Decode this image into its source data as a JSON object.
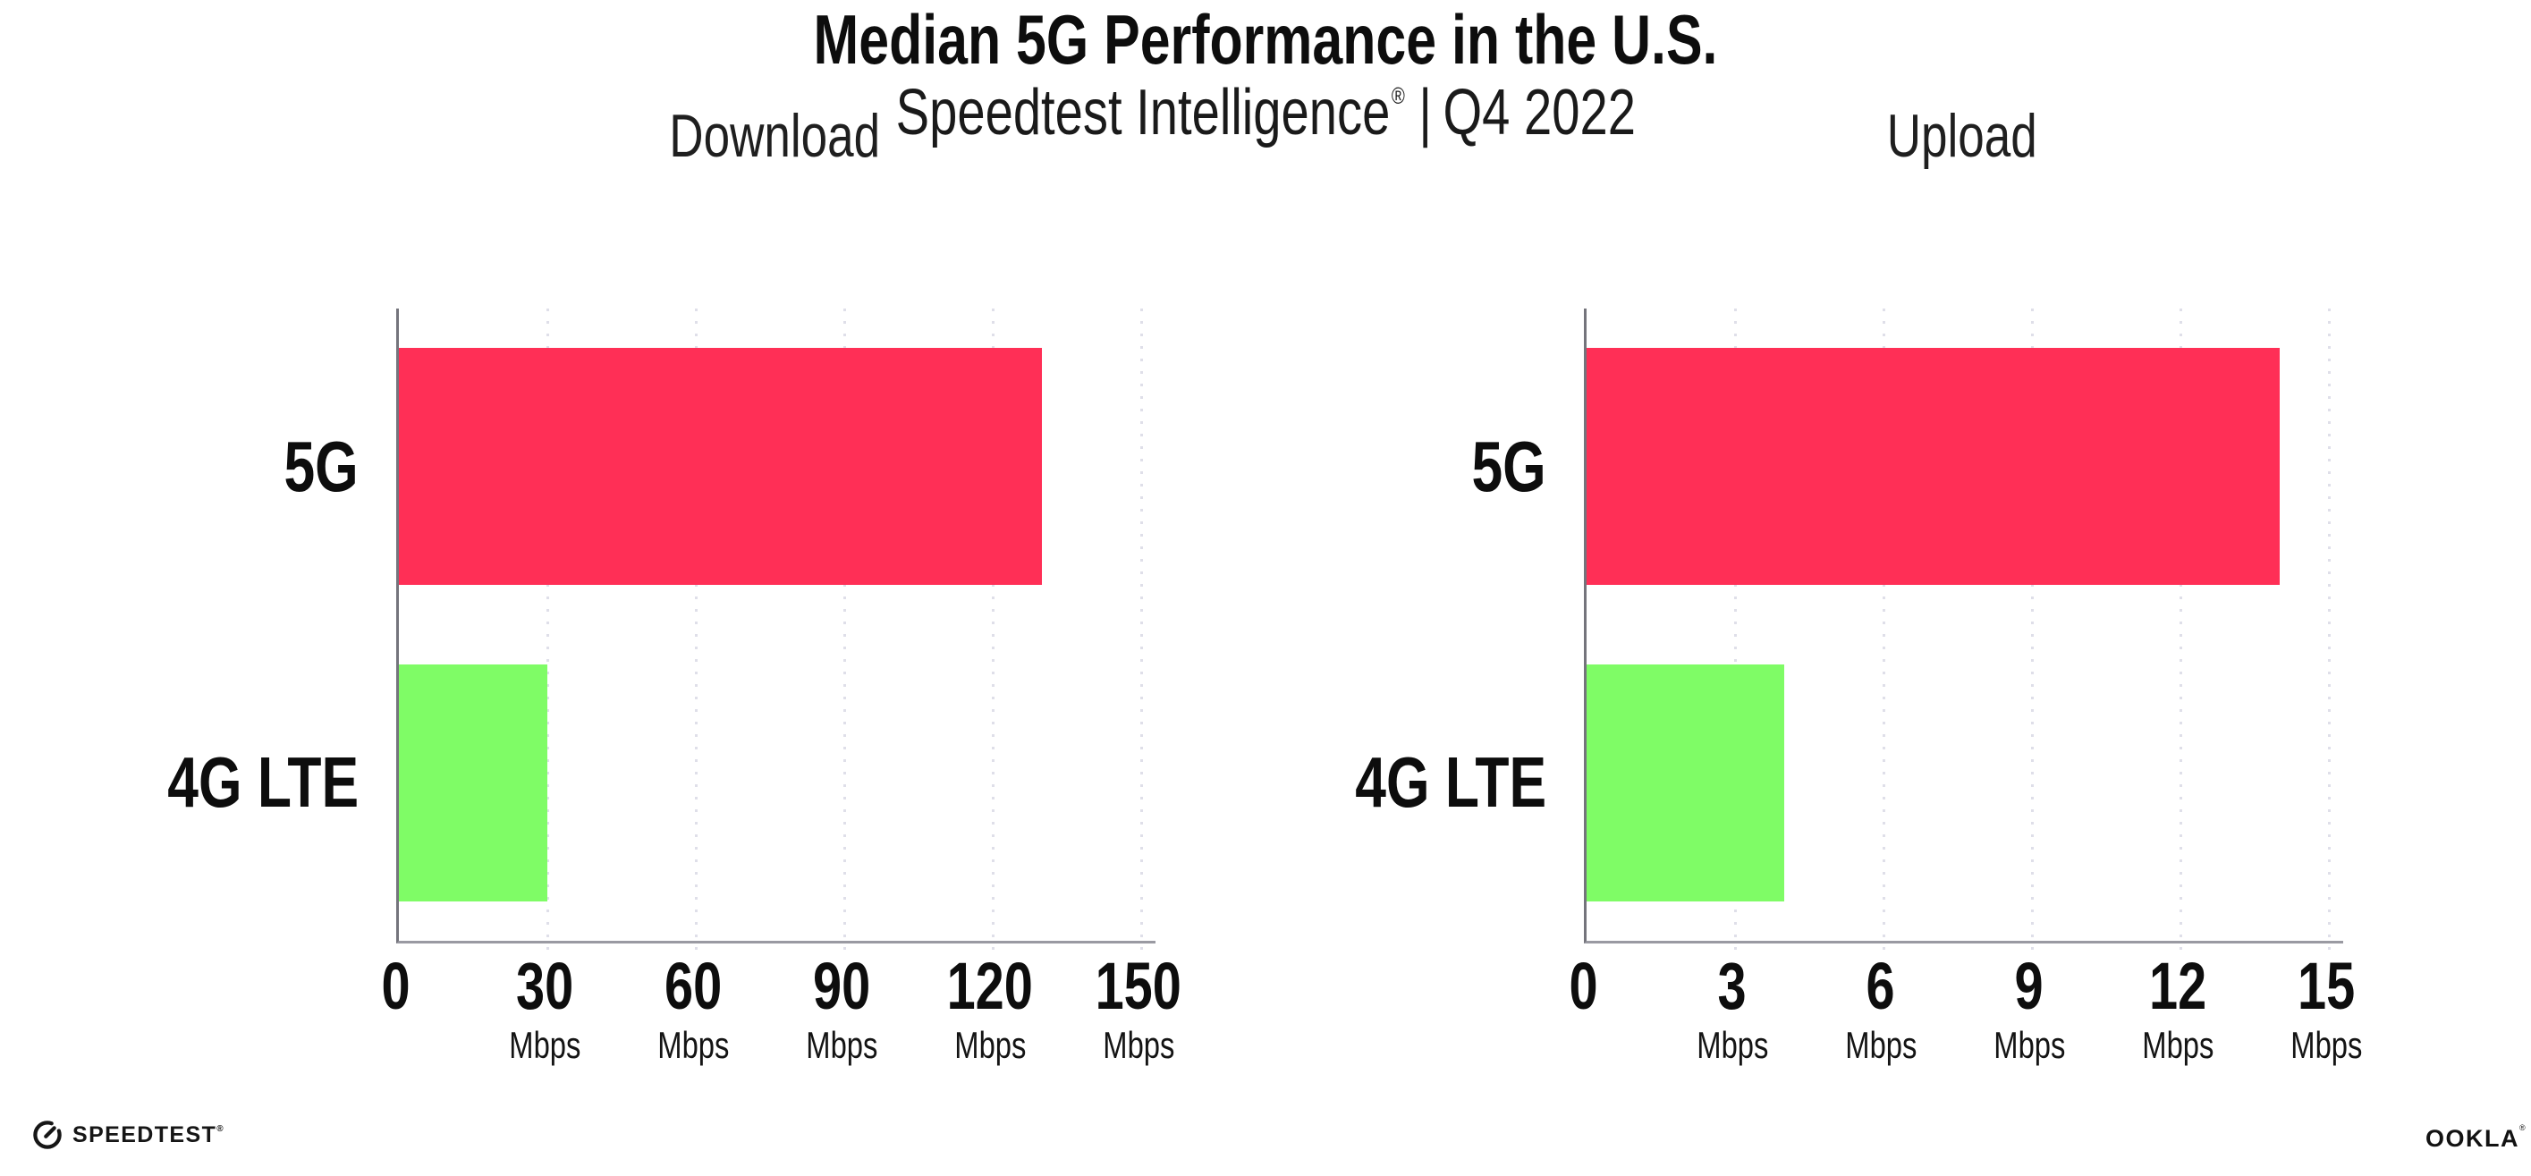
{
  "header": {
    "title": "Median 5G Performance in the U.S.",
    "subtitle_brand": "Speedtest Intelligence",
    "subtitle_reg_mark": "®",
    "subtitle_separator": "|",
    "subtitle_period": "Q4 2022"
  },
  "chart_data": [
    {
      "type": "bar",
      "orientation": "horizontal",
      "title": "Download",
      "categories": [
        "5G",
        "4G LTE"
      ],
      "values": [
        130,
        30
      ],
      "unit": "Mbps",
      "xlim": [
        0,
        150
      ],
      "xticks": [
        0,
        30,
        60,
        90,
        120,
        150
      ],
      "tick_unit_label": "Mbps",
      "bar_colors": [
        "#ff2f56",
        "#7ffc66"
      ],
      "grid": "dotted-vertical",
      "legend": "none"
    },
    {
      "type": "bar",
      "orientation": "horizontal",
      "title": "Upload",
      "categories": [
        "5G",
        "4G LTE"
      ],
      "values": [
        14,
        4
      ],
      "unit": "Mbps",
      "xlim": [
        0,
        15
      ],
      "xticks": [
        0,
        3,
        6,
        9,
        12,
        15
      ],
      "tick_unit_label": "Mbps",
      "bar_colors": [
        "#ff2f56",
        "#7ffc66"
      ],
      "grid": "dotted-vertical",
      "legend": "none"
    }
  ],
  "footer": {
    "speedtest_logo_text": "SPEEDTEST",
    "speedtest_reg_mark": "®",
    "ookla_logo_text": "OOKLA",
    "ookla_reg_mark": "®"
  },
  "colors": {
    "bar_5g": "#ff2f56",
    "bar_4g_lte": "#7ffc66",
    "gridline": "#dfdfe9",
    "axis_left_spine": "#74747c",
    "axis_bottom_spine": "#9a9aa2",
    "text": "#141414",
    "background": "#ffffff"
  }
}
